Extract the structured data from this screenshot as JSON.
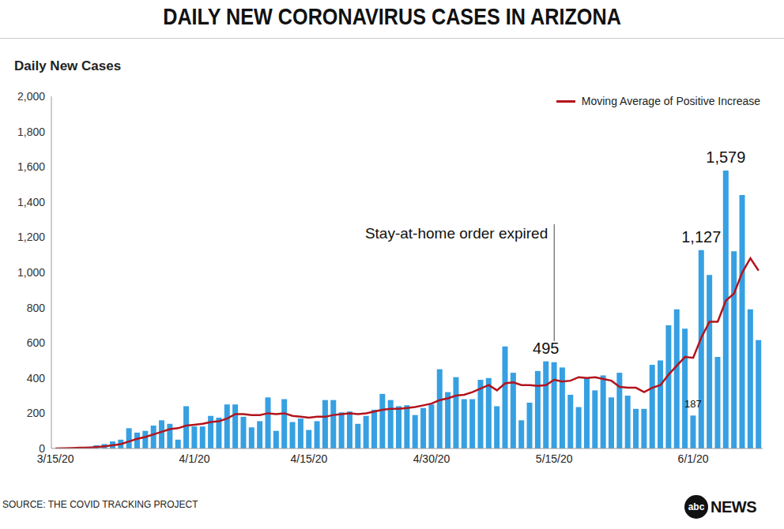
{
  "chart_data": {
    "type": "bar",
    "title": "DAILY NEW CORONAVIRUS CASES IN ARIZONA",
    "y_label": "Daily New Cases",
    "source": "SOURCE: THE COVID TRACKING PROJECT",
    "logo": [
      "abc",
      "NEWS"
    ],
    "categories": [
      "3/15/20",
      null,
      null,
      null,
      null,
      null,
      null,
      null,
      null,
      null,
      null,
      null,
      null,
      null,
      null,
      null,
      null,
      "4/1/20",
      null,
      null,
      null,
      null,
      null,
      null,
      null,
      null,
      null,
      null,
      null,
      null,
      null,
      "4/15/20",
      null,
      null,
      null,
      null,
      null,
      null,
      null,
      null,
      null,
      null,
      null,
      null,
      null,
      null,
      "4/30/20",
      null,
      null,
      null,
      null,
      null,
      null,
      null,
      null,
      null,
      null,
      null,
      null,
      null,
      null,
      "5/15/20",
      null,
      null,
      null,
      null,
      null,
      null,
      null,
      null,
      null,
      null,
      null,
      null,
      null,
      null,
      null,
      null,
      "6/1/20",
      null,
      null,
      null,
      null,
      null,
      null,
      null,
      null
    ],
    "series": [
      {
        "type": "bar",
        "color": "#36a0e2",
        "values": [
          0,
          3,
          5,
          8,
          10,
          18,
          25,
          40,
          50,
          115,
          90,
          100,
          130,
          160,
          140,
          50,
          240,
          125,
          125,
          185,
          175,
          250,
          250,
          180,
          120,
          155,
          290,
          100,
          280,
          150,
          170,
          105,
          155,
          275,
          275,
          205,
          210,
          140,
          185,
          220,
          310,
          275,
          240,
          245,
          190,
          230,
          250,
          450,
          320,
          405,
          280,
          280,
          390,
          400,
          240,
          580,
          430,
          160,
          260,
          440,
          495,
          490,
          460,
          305,
          235,
          400,
          330,
          415,
          290,
          430,
          300,
          225,
          225,
          475,
          500,
          700,
          790,
          680,
          187,
          1127,
          985,
          520,
          1579,
          1120,
          1440,
          790,
          615
        ],
        "value_labels": [
          null,
          null,
          null,
          null,
          null,
          null,
          null,
          null,
          null,
          null,
          null,
          null,
          null,
          null,
          null,
          null,
          null,
          null,
          null,
          null,
          null,
          null,
          null,
          null,
          null,
          null,
          null,
          null,
          null,
          null,
          null,
          null,
          null,
          null,
          null,
          null,
          null,
          null,
          null,
          null,
          null,
          null,
          null,
          null,
          null,
          null,
          null,
          null,
          null,
          null,
          null,
          null,
          null,
          null,
          null,
          null,
          null,
          null,
          null,
          null,
          "495",
          null,
          null,
          null,
          null,
          null,
          null,
          null,
          null,
          null,
          null,
          null,
          null,
          null,
          null,
          null,
          null,
          null,
          "187",
          "1,127",
          null,
          null,
          "1,579",
          null,
          null,
          null,
          null
        ]
      },
      {
        "name": "Moving Average of Positive Increase",
        "type": "line",
        "color": "#b3141c",
        "values": [
          0,
          1,
          2,
          4,
          5,
          8,
          12,
          18,
          25,
          40,
          55,
          65,
          80,
          95,
          110,
          115,
          130,
          135,
          140,
          150,
          155,
          170,
          195,
          195,
          190,
          190,
          200,
          195,
          200,
          185,
          180,
          175,
          180,
          180,
          190,
          195,
          200,
          195,
          200,
          210,
          220,
          225,
          225,
          230,
          235,
          245,
          255,
          275,
          285,
          300,
          305,
          320,
          340,
          360,
          330,
          370,
          375,
          360,
          360,
          355,
          360,
          390,
          380,
          385,
          405,
          400,
          405,
          395,
          385,
          350,
          345,
          345,
          320,
          345,
          360,
          420,
          470,
          520,
          515,
          630,
          720,
          720,
          840,
          880,
          1000,
          1080,
          1010
        ]
      }
    ],
    "ylim": [
      0,
      2000
    ],
    "yticks": [
      0,
      200,
      400,
      600,
      800,
      {
        "value": 1000,
        "label": "1,000"
      },
      {
        "value": 1200,
        "label": "1,200"
      },
      {
        "value": 1400,
        "label": "1,400"
      },
      {
        "value": 1600,
        "label": "1,600"
      },
      {
        "value": 1800,
        "label": "1,800"
      },
      {
        "value": 2000,
        "label": "2,000"
      }
    ],
    "grid": false,
    "legend": "upper right",
    "data_labels": true,
    "annotations": [
      {
        "text": "Stay-at-home order expired",
        "x": "5/15/20"
      }
    ]
  }
}
